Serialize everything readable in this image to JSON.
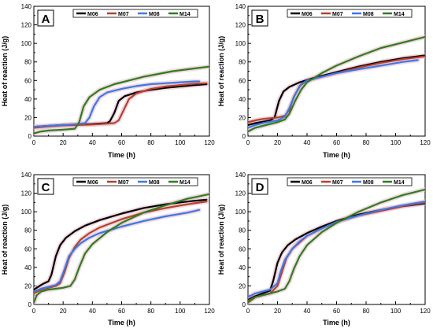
{
  "colors": {
    "M06": "#000000",
    "M07": "#b5412a",
    "M08": "#3b78e7",
    "M14": "#2e7d1e",
    "band": "#e8b9c6"
  },
  "chart_data": [
    {
      "type": "line",
      "panel_label": "A",
      "title": "",
      "xlabel": "Time (h)",
      "ylabel": "Heat of reaction (J/g)",
      "xlim": [
        0,
        120
      ],
      "ylim": [
        0,
        140
      ],
      "xticks": [
        "0",
        "20",
        "40",
        "60",
        "80",
        "100",
        "120"
      ],
      "yticks": [
        "0",
        "20",
        "40",
        "60",
        "80",
        "100",
        "120",
        "140"
      ],
      "legend": [
        "M06",
        "M07",
        "M08",
        "M14"
      ],
      "series": [
        {
          "name": "M06",
          "x": [
            0,
            10,
            20,
            30,
            40,
            50,
            52,
            55,
            58,
            62,
            70,
            80,
            90,
            100,
            110,
            118
          ],
          "y": [
            10,
            11,
            12,
            12.5,
            13,
            14,
            16,
            25,
            38,
            43,
            47,
            50,
            52,
            53.5,
            55,
            56
          ]
        },
        {
          "name": "M07",
          "x": [
            0,
            10,
            20,
            30,
            40,
            50,
            55,
            58,
            62,
            65,
            70,
            80,
            90,
            100,
            110,
            118
          ],
          "y": [
            9,
            10.5,
            11.5,
            12,
            12.5,
            13.5,
            14,
            17,
            30,
            40,
            46,
            51,
            53.5,
            55,
            56.5,
            57
          ]
        },
        {
          "name": "M08",
          "x": [
            0,
            10,
            20,
            30,
            35,
            38,
            41,
            45,
            50,
            60,
            70,
            80,
            90,
            100,
            110,
            113
          ],
          "y": [
            10,
            11,
            12,
            13,
            14,
            20,
            32,
            42,
            47,
            51,
            54,
            56,
            57,
            58,
            59,
            59
          ]
        },
        {
          "name": "M14",
          "x": [
            0,
            5,
            10,
            20,
            28,
            31,
            34,
            38,
            45,
            55,
            65,
            75,
            85,
            95,
            105,
            120
          ],
          "y": [
            3,
            5,
            6,
            7,
            8,
            15,
            32,
            42,
            50,
            56,
            60,
            64,
            67,
            70,
            72,
            75
          ]
        }
      ]
    },
    {
      "type": "line",
      "panel_label": "B",
      "title": "",
      "xlabel": "Time (h)",
      "ylabel": "Heat of reaction (J/g)",
      "xlim": [
        0,
        120
      ],
      "ylim": [
        0,
        140
      ],
      "xticks": [
        "0",
        "20",
        "40",
        "60",
        "80",
        "100",
        "120"
      ],
      "yticks": [
        "0",
        "20",
        "40",
        "60",
        "80",
        "100",
        "120",
        "140"
      ],
      "legend": [
        "M06",
        "M07",
        "M08",
        "M14"
      ],
      "series": [
        {
          "name": "M06",
          "x": [
            0,
            5,
            10,
            15,
            18,
            21,
            24,
            28,
            35,
            45,
            60,
            75,
            90,
            105,
            120
          ],
          "y": [
            12,
            14,
            15.5,
            17,
            20,
            38,
            48,
            53,
            58,
            63,
            69,
            75,
            80,
            84,
            87
          ]
        },
        {
          "name": "M07",
          "x": [
            0,
            5,
            10,
            20,
            25,
            28,
            31,
            35,
            40,
            50,
            60,
            75,
            90,
            105,
            120
          ],
          "y": [
            15,
            17,
            18.5,
            20,
            22,
            28,
            42,
            54,
            60,
            64,
            68,
            74,
            79,
            83,
            86
          ]
        },
        {
          "name": "M08",
          "x": [
            0,
            5,
            10,
            20,
            25,
            28,
            32,
            36,
            40,
            50,
            60,
            75,
            90,
            105,
            115
          ],
          "y": [
            9,
            12,
            14,
            17,
            21,
            30,
            45,
            56,
            60,
            64,
            68,
            72,
            76,
            80,
            82
          ]
        },
        {
          "name": "M14",
          "x": [
            0,
            5,
            10,
            20,
            25,
            28,
            32,
            36,
            40,
            50,
            60,
            75,
            90,
            105,
            120
          ],
          "y": [
            5,
            9,
            11,
            15,
            18,
            24,
            38,
            50,
            58,
            68,
            76,
            86,
            95,
            101,
            107
          ]
        }
      ]
    },
    {
      "type": "line",
      "panel_label": "C",
      "title": "",
      "xlabel": "Time (h)",
      "ylabel": "Heat of reaction (J/g)",
      "xlim": [
        0,
        120
      ],
      "ylim": [
        0,
        140
      ],
      "xticks": [
        "0",
        "20",
        "40",
        "60",
        "80",
        "100",
        "120"
      ],
      "yticks": [
        "0",
        "20",
        "40",
        "60",
        "80",
        "100",
        "120",
        "140"
      ],
      "legend": [
        "M06",
        "M07",
        "M08",
        "M14"
      ],
      "series": [
        {
          "name": "M06",
          "x": [
            0,
            3,
            6,
            10,
            12,
            15,
            18,
            22,
            28,
            35,
            45,
            60,
            75,
            90,
            105,
            118
          ],
          "y": [
            16,
            19,
            22,
            25,
            32,
            52,
            64,
            72,
            79,
            85,
            91,
            98,
            104,
            108,
            111,
            113
          ]
        },
        {
          "name": "M07",
          "x": [
            0,
            5,
            10,
            15,
            18,
            21,
            24,
            28,
            32,
            38,
            45,
            60,
            75,
            90,
            105,
            118
          ],
          "y": [
            12,
            16,
            18,
            20,
            23,
            35,
            50,
            62,
            70,
            77,
            83,
            92,
            99,
            104,
            108,
            111
          ]
        },
        {
          "name": "M08",
          "x": [
            0,
            5,
            10,
            15,
            18,
            21,
            24,
            28,
            32,
            38,
            45,
            60,
            75,
            90,
            105,
            113
          ],
          "y": [
            14,
            17,
            19,
            21,
            25,
            38,
            52,
            60,
            66,
            72,
            77,
            84,
            90,
            95,
            99,
            102
          ]
        },
        {
          "name": "M14",
          "x": [
            0,
            2,
            5,
            10,
            15,
            20,
            25,
            28,
            31,
            35,
            40,
            50,
            60,
            75,
            90,
            105,
            120
          ],
          "y": [
            2,
            10,
            14,
            16,
            17,
            18,
            20,
            27,
            40,
            55,
            65,
            78,
            88,
            99,
            107,
            114,
            119
          ]
        }
      ]
    },
    {
      "type": "line",
      "panel_label": "D",
      "title": "",
      "xlabel": "Time (h)",
      "ylabel": "Heat of reaction (J/g)",
      "xlim": [
        0,
        120
      ],
      "ylim": [
        0,
        140
      ],
      "xticks": [
        "0",
        "20",
        "40",
        "60",
        "80",
        "100",
        "120"
      ],
      "yticks": [
        "0",
        "20",
        "40",
        "60",
        "80",
        "100",
        "120",
        "140"
      ],
      "legend": [
        "M06",
        "M07",
        "M08",
        "M14"
      ],
      "series": [
        {
          "name": "M06",
          "x": [
            0,
            5,
            10,
            15,
            17,
            20,
            23,
            27,
            32,
            40,
            50,
            60,
            75,
            90,
            105,
            120
          ],
          "y": [
            5,
            9,
            12,
            15,
            25,
            45,
            56,
            64,
            70,
            77,
            84,
            90,
            97,
            102,
            106,
            109
          ]
        },
        {
          "name": "M07",
          "x": [
            0,
            5,
            10,
            15,
            20,
            23,
            26,
            30,
            35,
            40,
            50,
            60,
            75,
            90,
            105,
            120
          ],
          "y": [
            4,
            8,
            10,
            12,
            20,
            35,
            50,
            60,
            67,
            74,
            82,
            89,
            96,
            101,
            106,
            110
          ]
        },
        {
          "name": "M08",
          "x": [
            0,
            5,
            10,
            15,
            20,
            22,
            25,
            30,
            35,
            40,
            50,
            60,
            75,
            90,
            105,
            120
          ],
          "y": [
            8,
            12,
            14,
            16,
            23,
            35,
            48,
            60,
            68,
            74,
            82,
            89,
            96,
            102,
            107,
            111
          ]
        },
        {
          "name": "M14",
          "x": [
            0,
            5,
            10,
            15,
            20,
            25,
            28,
            31,
            35,
            40,
            50,
            60,
            75,
            90,
            105,
            120
          ],
          "y": [
            2,
            8,
            10,
            12,
            14,
            17,
            25,
            38,
            52,
            64,
            78,
            88,
            100,
            110,
            118,
            124
          ]
        }
      ]
    }
  ]
}
